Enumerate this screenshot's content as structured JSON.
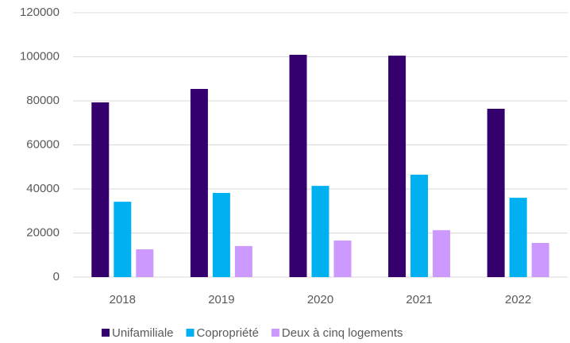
{
  "chart_data": {
    "type": "bar",
    "categories": [
      "2018",
      "2019",
      "2020",
      "2021",
      "2022"
    ],
    "series": [
      {
        "name": "Unifamiliale",
        "color": "#34006e",
        "values": [
          79300,
          85400,
          100900,
          100500,
          76400
        ]
      },
      {
        "name": "Copropriété",
        "color": "#00b0f0",
        "values": [
          34200,
          38200,
          41400,
          46500,
          36000
        ]
      },
      {
        "name": "Deux à cinq logements",
        "color": "#cc99ff",
        "values": [
          12600,
          14100,
          16600,
          21300,
          15500
        ]
      }
    ],
    "ylim": [
      0,
      120000
    ],
    "yticks": [
      0,
      20000,
      40000,
      60000,
      80000,
      100000,
      120000
    ],
    "grid": true,
    "legend": "bottom"
  }
}
